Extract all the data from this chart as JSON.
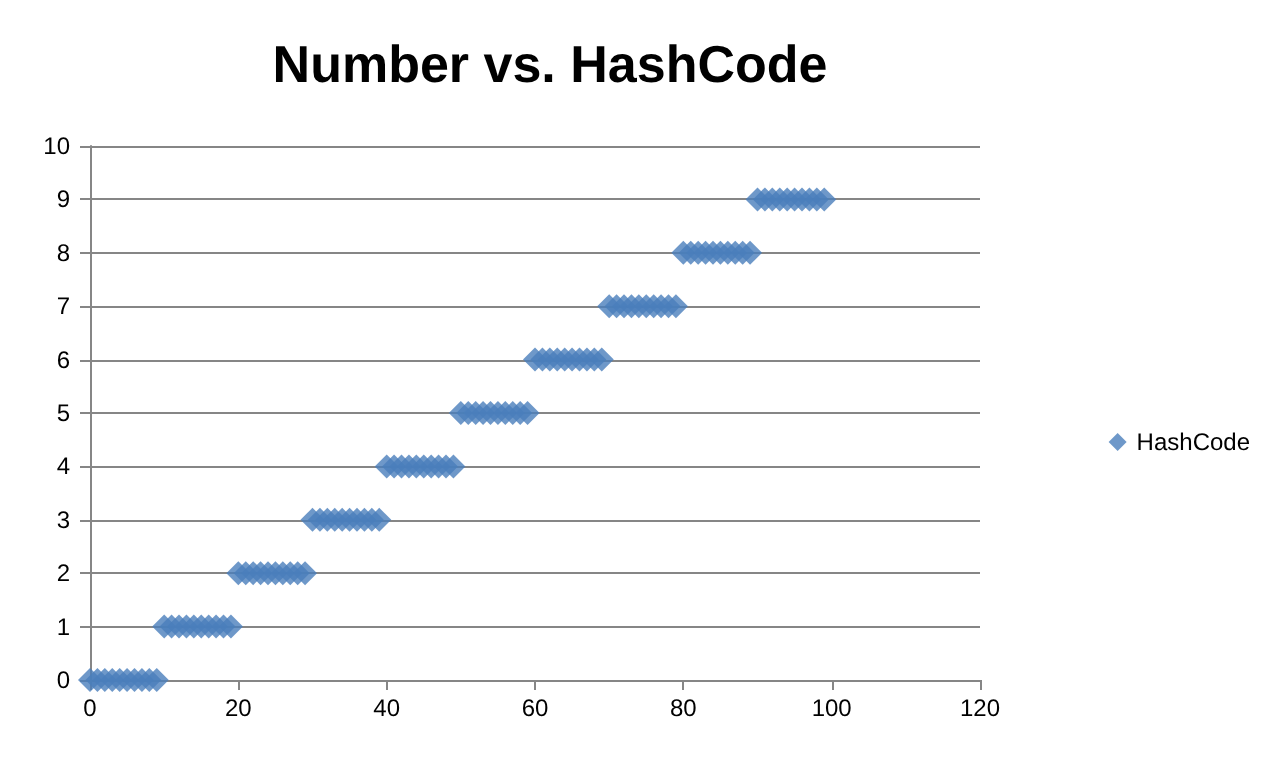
{
  "chart_data": {
    "type": "scatter",
    "title": "Number vs. HashCode",
    "x": [
      0,
      1,
      2,
      3,
      4,
      5,
      6,
      7,
      8,
      9,
      10,
      11,
      12,
      13,
      14,
      15,
      16,
      17,
      18,
      19,
      20,
      21,
      22,
      23,
      24,
      25,
      26,
      27,
      28,
      29,
      30,
      31,
      32,
      33,
      34,
      35,
      36,
      37,
      38,
      39,
      40,
      41,
      42,
      43,
      44,
      45,
      46,
      47,
      48,
      49,
      50,
      51,
      52,
      53,
      54,
      55,
      56,
      57,
      58,
      59,
      60,
      61,
      62,
      63,
      64,
      65,
      66,
      67,
      68,
      69,
      70,
      71,
      72,
      73,
      74,
      75,
      76,
      77,
      78,
      79,
      80,
      81,
      82,
      83,
      84,
      85,
      86,
      87,
      88,
      89,
      90,
      91,
      92,
      93,
      94,
      95,
      96,
      97,
      98,
      99
    ],
    "series": [
      {
        "name": "HashCode",
        "color": "#4a7ebb",
        "values": [
          0,
          0,
          0,
          0,
          0,
          0,
          0,
          0,
          0,
          0,
          1,
          1,
          1,
          1,
          1,
          1,
          1,
          1,
          1,
          1,
          2,
          2,
          2,
          2,
          2,
          2,
          2,
          2,
          2,
          2,
          3,
          3,
          3,
          3,
          3,
          3,
          3,
          3,
          3,
          3,
          4,
          4,
          4,
          4,
          4,
          4,
          4,
          4,
          4,
          4,
          5,
          5,
          5,
          5,
          5,
          5,
          5,
          5,
          5,
          5,
          6,
          6,
          6,
          6,
          6,
          6,
          6,
          6,
          6,
          6,
          7,
          7,
          7,
          7,
          7,
          7,
          7,
          7,
          7,
          7,
          8,
          8,
          8,
          8,
          8,
          8,
          8,
          8,
          8,
          8,
          9,
          9,
          9,
          9,
          9,
          9,
          9,
          9,
          9,
          9
        ]
      }
    ],
    "xlim": [
      0,
      120
    ],
    "xticks": [
      0,
      20,
      40,
      60,
      80,
      100,
      120
    ],
    "ylim": [
      0,
      10
    ],
    "yticks": [
      0,
      1,
      2,
      3,
      4,
      5,
      6,
      7,
      8,
      9,
      10
    ],
    "grid": "y",
    "legend": "right",
    "marker": "diamond"
  }
}
